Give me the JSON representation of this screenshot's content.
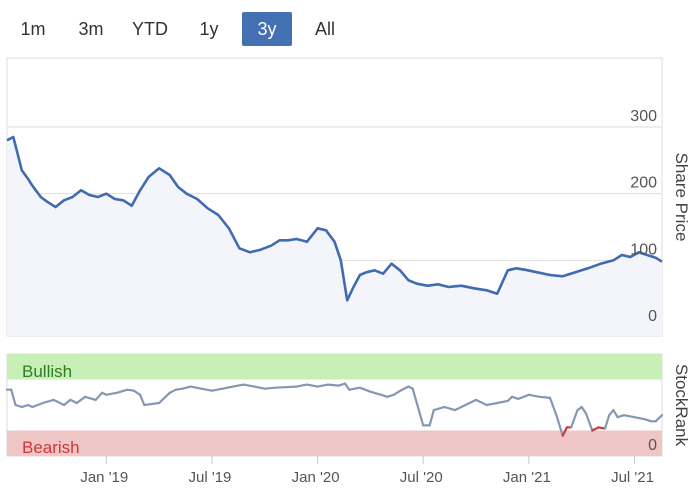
{
  "range_selector": {
    "buttons": [
      "1m",
      "3m",
      "YTD",
      "1y",
      "3y",
      "All"
    ],
    "active": "3y"
  },
  "colors": {
    "price_line": "#3f6bb0",
    "price_fill": "#f3f5fb",
    "rank_line": "#8497b3",
    "rank_bearish_line": "#d0363c",
    "bullish_band": "#c8efb6",
    "bullish_text": "#2f7d23",
    "bearish_band": "#eec6c5",
    "bearish_text": "#d23439",
    "grid": "#dedede",
    "active_button": "#4470b4"
  },
  "chart_data": [
    {
      "type": "area",
      "title": "",
      "ylabel": "Share Price",
      "y_ticks": [
        0,
        100,
        200,
        300
      ],
      "ylim": [
        0,
        400
      ],
      "x_ticks": [
        "Jan '19",
        "Jul '19",
        "Jan '20",
        "Jul '20",
        "Jan '21",
        "Jul '21"
      ],
      "xlim": [
        2018.53,
        2021.63
      ],
      "series": [
        {
          "name": "Share Price",
          "x": [
            2018.53,
            2018.56,
            2018.58,
            2018.6,
            2018.63,
            2018.65,
            2018.69,
            2018.72,
            2018.76,
            2018.8,
            2018.84,
            2018.88,
            2018.92,
            2018.96,
            2019.0,
            2019.04,
            2019.08,
            2019.12,
            2019.16,
            2019.2,
            2019.25,
            2019.3,
            2019.34,
            2019.38,
            2019.43,
            2019.48,
            2019.53,
            2019.58,
            2019.63,
            2019.68,
            2019.73,
            2019.78,
            2019.82,
            2019.86,
            2019.9,
            2019.95,
            2020.0,
            2020.04,
            2020.08,
            2020.11,
            2020.14,
            2020.17,
            2020.2,
            2020.23,
            2020.27,
            2020.31,
            2020.35,
            2020.39,
            2020.43,
            2020.47,
            2020.52,
            2020.57,
            2020.62,
            2020.68,
            2020.74,
            2020.8,
            2020.85,
            2020.9,
            2020.94,
            2020.98,
            2021.04,
            2021.1,
            2021.16,
            2021.22,
            2021.28,
            2021.34,
            2021.4,
            2021.44,
            2021.48,
            2021.52,
            2021.56,
            2021.6,
            2021.63
          ],
          "values": [
            280,
            285,
            260,
            235,
            222,
            212,
            195,
            188,
            180,
            190,
            195,
            205,
            198,
            195,
            200,
            192,
            190,
            182,
            205,
            225,
            238,
            228,
            210,
            200,
            192,
            178,
            168,
            148,
            118,
            112,
            116,
            122,
            130,
            130,
            132,
            128,
            148,
            145,
            128,
            100,
            40,
            60,
            78,
            82,
            85,
            80,
            95,
            85,
            70,
            65,
            62,
            64,
            60,
            62,
            58,
            55,
            50,
            85,
            88,
            86,
            82,
            78,
            76,
            82,
            88,
            95,
            100,
            108,
            105,
            112,
            108,
            104,
            98
          ]
        }
      ]
    },
    {
      "type": "line",
      "title": "",
      "ylabel": "StockRank",
      "y_ticks": [
        0
      ],
      "ylim": [
        0,
        100
      ],
      "bands": [
        {
          "label": "Bullish",
          "from": 75,
          "to": 100
        },
        {
          "label": "Bearish",
          "from": 0,
          "to": 25
        }
      ],
      "series": [
        {
          "name": "StockRank",
          "x": [
            2018.53,
            2018.55,
            2018.57,
            2018.6,
            2018.63,
            2018.65,
            2018.7,
            2018.75,
            2018.8,
            2018.83,
            2018.86,
            2018.9,
            2018.95,
            2018.98,
            2019.0,
            2019.05,
            2019.1,
            2019.13,
            2019.16,
            2019.18,
            2019.25,
            2019.3,
            2019.33,
            2019.36,
            2019.4,
            2019.45,
            2019.5,
            2019.55,
            2019.6,
            2019.65,
            2019.7,
            2019.75,
            2019.8,
            2019.9,
            2019.95,
            2020.0,
            2020.05,
            2020.1,
            2020.13,
            2020.15,
            2020.2,
            2020.25,
            2020.3,
            2020.33,
            2020.36,
            2020.4,
            2020.43,
            2020.45,
            2020.5,
            2020.53,
            2020.55,
            2020.6,
            2020.65,
            2020.7,
            2020.75,
            2020.8,
            2020.85,
            2020.9,
            2020.92,
            2020.95,
            2021.0,
            2021.05,
            2021.1,
            2021.13,
            2021.16,
            2021.18,
            2021.2,
            2021.23,
            2021.25,
            2021.27,
            2021.3,
            2021.33,
            2021.36,
            2021.38,
            2021.4,
            2021.42,
            2021.45,
            2021.5,
            2021.55,
            2021.58,
            2021.6,
            2021.63
          ],
          "values": [
            65,
            65,
            50,
            48,
            50,
            48,
            52,
            55,
            50,
            55,
            52,
            58,
            55,
            62,
            60,
            62,
            65,
            64,
            60,
            50,
            52,
            62,
            65,
            66,
            68,
            66,
            64,
            66,
            68,
            70,
            68,
            66,
            67,
            68,
            70,
            68,
            70,
            69,
            71,
            65,
            67,
            63,
            60,
            58,
            60,
            65,
            68,
            66,
            30,
            30,
            45,
            48,
            45,
            50,
            55,
            50,
            52,
            54,
            58,
            56,
            60,
            58,
            57,
            40,
            20,
            28,
            28,
            45,
            48,
            42,
            25,
            28,
            27,
            40,
            45,
            38,
            40,
            38,
            36,
            34,
            34,
            40
          ]
        }
      ]
    }
  ]
}
